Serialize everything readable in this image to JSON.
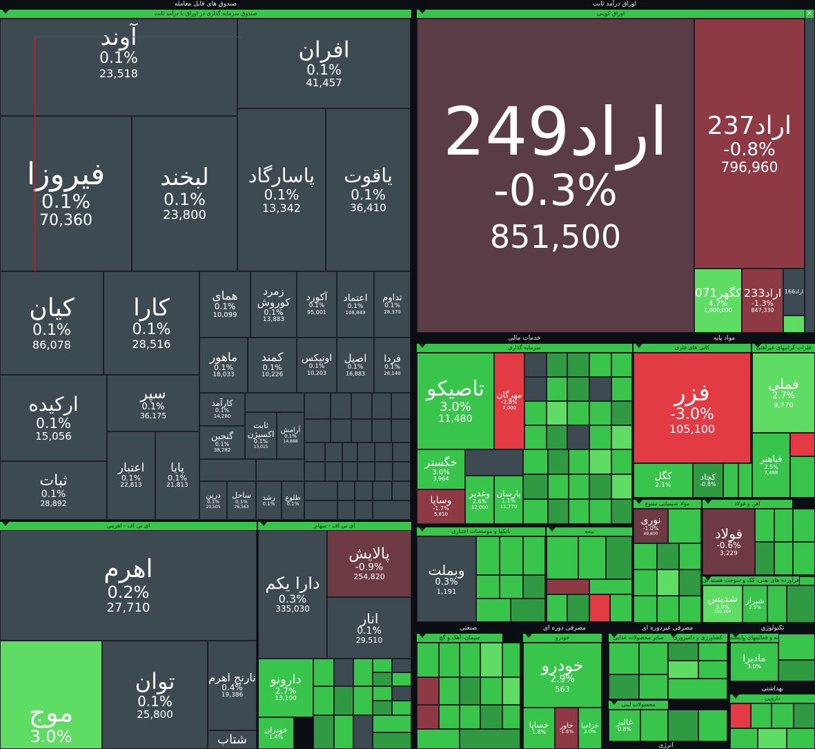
{
  "sections": {
    "funds": "صندوق های قابل معامله",
    "fixed_income": "اوراق درآمد ثابت",
    "financial_services": "خدمات مالی",
    "base_materials": "مواد پایه",
    "industrial": "صنعتی",
    "durable_consumer": "مصرفی دوره ای",
    "nondurable_consumer": "مصرفی غیردوره ای",
    "energy": "انرژی",
    "technology": "تکنولوژی",
    "health": "بهداشتی"
  },
  "groups": {
    "fixed_income_fund": "صندوق سرمایه گذاری در اوراق با درآمد ثابت",
    "etf_leveraged": "ای تی اف - اهرمی",
    "etf_equity": "ای تی اف - سهام",
    "coupon_bonds": "اوراق کوپنی",
    "investment": "سرمایه گذاری",
    "metal_ores": "کانی های فلزی",
    "nonferrous": "فلزات گرانبهای غیرآهنی",
    "chemical": "مواد شیمیایی متنوع",
    "iron_steel": "آهن و فولاد",
    "banks_credit": "بانکها و موسسات اعتباری",
    "insurance": "بیمه",
    "coke_refinery": "فرآورده های نفتی، کک و سوخت هسته ای",
    "cement": "سیمان، آهک و گچ",
    "auto": "خودرو",
    "food_other": "سایر محصولات غذایی",
    "agriculture": "کشاورزی و دامپروری",
    "dairy": "محصولات لبنی",
    "it_services": "رایانه و فعالیتهای وابسته",
    "pharma": "دارویی"
  },
  "tiles": {
    "avand": {
      "name": "آوند",
      "pct": "0.1%",
      "val": "23,518"
    },
    "afran": {
      "name": "افران",
      "pct": "0.1%",
      "val": "41,457"
    },
    "firooza": {
      "name": "فیروزا",
      "pct": "0.1%",
      "val": "70,360"
    },
    "labkhand": {
      "name": "لبخند",
      "pct": "0.1%",
      "val": "23,800"
    },
    "pasargad": {
      "name": "پاسارگاد",
      "pct": "0.1%",
      "val": "13,342"
    },
    "yaghout": {
      "name": "یاقوت",
      "pct": "0.1%",
      "val": "36,410"
    },
    "kian": {
      "name": "کیان",
      "pct": "0.1%",
      "val": "86,078"
    },
    "kara": {
      "name": "کارا",
      "pct": "0.1%",
      "val": "28,516"
    },
    "homay": {
      "name": "همای",
      "pct": "0.1%",
      "val": "10,099"
    },
    "zomorod": {
      "name": "زمرد کوروش",
      "pct": "0.1%",
      "val": "13,883"
    },
    "akord": {
      "name": "آکورد",
      "pct": "0.1%",
      "val": "95,001"
    },
    "etemad": {
      "name": "اعتماد",
      "pct": "0.1%",
      "val": "108,849"
    },
    "tadavom": {
      "name": "تداوم",
      "pct": "0.1%",
      "val": "28,370"
    },
    "mahoor": {
      "name": "ماهور",
      "pct": "0.1%",
      "val": "18,033"
    },
    "kamand": {
      "name": "کمند",
      "pct": "0.1%",
      "val": "10,226"
    },
    "onix": {
      "name": "اونیکس",
      "pct": "0.1%",
      "val": "10,203"
    },
    "asil": {
      "name": "اصیل",
      "pct": "0.1%",
      "val": "16,883"
    },
    "farda": {
      "name": "فردا",
      "pct": "0.1%",
      "val": "28,140"
    },
    "arkide": {
      "name": "ارکیده",
      "pct": "0.1%",
      "val": "15,056"
    },
    "separ": {
      "name": "سپر",
      "pct": "0.1%",
      "val": "36,175"
    },
    "sabat": {
      "name": "ثبات",
      "pct": "0.1%",
      "val": "28,892"
    },
    "etebar": {
      "name": "اعتبار",
      "pct": "0.1%",
      "val": "22,813"
    },
    "paya": {
      "name": "پایا",
      "pct": "0.1%",
      "val": "21,813"
    },
    "karamad": {
      "name": "کارآمد",
      "pct": "0.1%",
      "val": "14,280"
    },
    "ganjin": {
      "name": "گنجین",
      "pct": "0.1%",
      "val": "38,282"
    },
    "sabet_oxin": {
      "name": "ثابت اکسیژن",
      "pct": "0.1%",
      "val": "13,015"
    },
    "aramesh": {
      "name": "آرامش",
      "pct": "0.1%",
      "val": "14,888"
    },
    "dorin": {
      "name": "درین",
      "pct": "0.1%",
      "val": "20,505"
    },
    "sahel": {
      "name": "ساحل",
      "pct": "0.1%",
      "val": "26,563"
    },
    "roshd": {
      "name": "رشد",
      "pct": "0.1%",
      "val": ""
    },
    "toloo": {
      "name": "طلوع",
      "pct": "0.1%",
      "val": ""
    },
    "ahrom": {
      "name": "اهرم",
      "pct": "0.2%",
      "val": "27,710"
    },
    "mowj": {
      "name": "موج",
      "pct": "3.0%",
      "val": ""
    },
    "tavan": {
      "name": "توان",
      "pct": "0.1%",
      "val": "25,800"
    },
    "narenj": {
      "name": "نارنج اهرم",
      "pct": "0.4%",
      "val": "19,386"
    },
    "dara_yekom": {
      "name": "دارا یکم",
      "pct": "0.3%",
      "val": "335,030"
    },
    "palayesh": {
      "name": "پالایش",
      "pct": "-0.9%",
      "val": "254,820"
    },
    "anar": {
      "name": "انار",
      "pct": "0.1%",
      "val": "29,510"
    },
    "daroono": {
      "name": "دارونو",
      "pct": "2.7%",
      "val": "13,100"
    },
    "khodran": {
      "name": "خودران",
      "pct": "1.4%",
      "val": ""
    },
    "shetab": {
      "name": "شتاب",
      "pct": "",
      "val": ""
    },
    "arad249": {
      "name": "اراد249",
      "pct": "-0.3%",
      "val": "851,500"
    },
    "arad237": {
      "name": "اراد237",
      "pct": "-0.8%",
      "val": "796,960"
    },
    "kagohar071": {
      "name": "کگهر071",
      "pct": "4.7%",
      "val": "1,000,000"
    },
    "arad233": {
      "name": "اراد233",
      "pct": "-1.3%",
      "val": "847,330"
    },
    "arad166": {
      "name": "اراد166",
      "pct": "",
      "val": ""
    },
    "tasiko": {
      "name": "تاصیکو",
      "pct": "3.0%",
      "val": "11,480"
    },
    "mehrgan": {
      "name": "مهرگان",
      "pct": "-2.8%",
      "val": "7,000"
    },
    "khegostar": {
      "name": "خگستر",
      "pct": "3.0%",
      "val": "3,964"
    },
    "vasapa": {
      "name": "وساپا",
      "pct": "-1.7%",
      "val": "5,810"
    },
    "vaghadir": {
      "name": "وغدیر",
      "pct": "2.6%",
      "val": "12,000"
    },
    "parsan": {
      "name": "پارسان",
      "pct": "1.1%",
      "val": "11,770"
    },
    "fazar": {
      "name": "فزر",
      "pct": "-3.0%",
      "val": "105,100"
    },
    "fameli": {
      "name": "فملی",
      "pct": "2.7%",
      "val": "9,770"
    },
    "kegol": {
      "name": "کگل",
      "pct": "2.1%",
      "val": ""
    },
    "kechad": {
      "name": "کچاد",
      "pct": "-0.8%",
      "val": ""
    },
    "fabahonar": {
      "name": "فباهنر",
      "pct": "2.5%",
      "val": "7,488"
    },
    "noori": {
      "name": "نوری",
      "pct": "-1.0%",
      "val": "49,800"
    },
    "foolad": {
      "name": "فولاد",
      "pct": "-0.6%",
      "val": "3,229"
    },
    "vabmelat": {
      "name": "وبملت",
      "pct": "0.3%",
      "val": "1,191"
    },
    "shebandar": {
      "name": "شبندر",
      "pct": "",
      "val": ""
    },
    "shedis": {
      "name": "شدیس",
      "pct": "3.9%",
      "val": "359,200"
    },
    "shiraz": {
      "name": "شیراز",
      "pct": "2.5%",
      "val": ""
    },
    "khodro": {
      "name": "خودرو",
      "pct": "2.9%",
      "val": "563"
    },
    "khesapa": {
      "name": "خساپا",
      "pct": "1.8%",
      "val": ""
    },
    "khavar": {
      "name": "خاور",
      "pct": "-1.6%",
      "val": ""
    },
    "khazamia": {
      "name": "خزامیا",
      "pct": "3.0%",
      "val": ""
    },
    "madira": {
      "name": "مادیرا",
      "pct": "3.0%",
      "val": ""
    },
    "ghalber": {
      "name": "غالبر",
      "pct": "0.8%",
      "val": ""
    }
  }
}
